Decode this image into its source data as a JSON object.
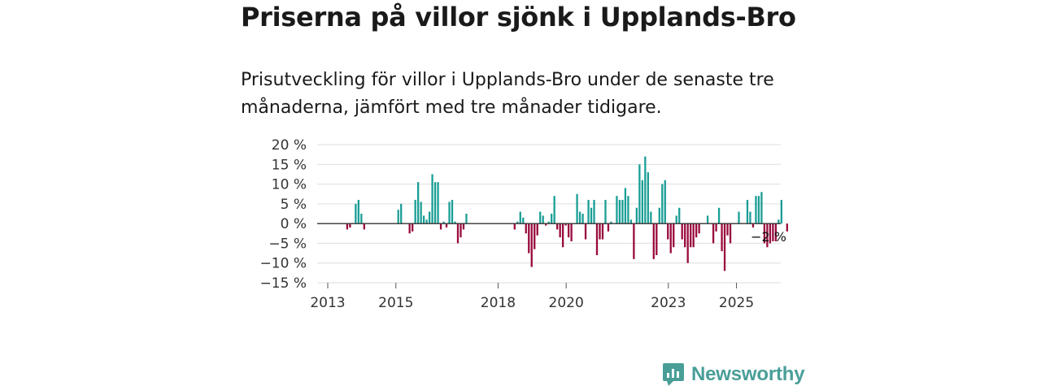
{
  "header": {
    "title": "Priserna på villor sjönk i Upplands-Bro",
    "subtitle": "Prisutveckling för villor i Upplands-Bro under de senaste tre månaderna, jämfört med tre månader tidigare."
  },
  "brand": {
    "name": "Newsworthy"
  },
  "colors": {
    "positive": "#1a9e96",
    "negative": "#990a3d",
    "grid": "#dddddd",
    "zero_line": "#333333"
  },
  "chart_data": {
    "type": "bar",
    "title": "Priserna på villor sjönk i Upplands-Bro",
    "ylabel": "",
    "xlabel": "",
    "ylim": [
      -15,
      20
    ],
    "y_ticks": [
      20,
      15,
      10,
      5,
      0,
      -5,
      -10,
      -15
    ],
    "y_tick_labels": [
      "20 %",
      "15 %",
      "10 %",
      "5 %",
      "0 %",
      "−5 %",
      "−10 %",
      "−15 %"
    ],
    "x_ticks": [
      {
        "label": "2013",
        "year": 2013
      },
      {
        "label": "2015",
        "year": 2015
      },
      {
        "label": "2018",
        "year": 2018
      },
      {
        "label": "2020",
        "year": 2020
      },
      {
        "label": "2023",
        "year": 2023
      },
      {
        "label": "2025",
        "year": 2025
      }
    ],
    "grid": true,
    "start": {
      "year": 2013,
      "month": 1
    },
    "unit": "%",
    "values": [
      null,
      null,
      null,
      null,
      null,
      null,
      -1.5,
      -1,
      0,
      5,
      6,
      2.5,
      -1.5,
      null,
      null,
      null,
      null,
      null,
      null,
      null,
      null,
      null,
      null,
      null,
      3.5,
      5,
      null,
      null,
      -2.5,
      -2,
      6,
      10.5,
      5.5,
      2,
      1,
      3,
      12.5,
      10.5,
      10.5,
      -1.5,
      0.5,
      -1,
      5.5,
      6,
      0.5,
      -5,
      -3.5,
      -1.5,
      2.5,
      null,
      null,
      null,
      null,
      null,
      null,
      null,
      null,
      null,
      null,
      null,
      null,
      null,
      null,
      null,
      null,
      -1.5,
      0.5,
      3,
      1.5,
      -2.5,
      -7.5,
      -11,
      -6.5,
      -3,
      3,
      2,
      -0.5,
      0.5,
      2.5,
      7,
      -1.5,
      -3.5,
      -6,
      -0.5,
      -3.5,
      -4.5,
      null,
      7.5,
      3,
      2.5,
      -4,
      6,
      4,
      6,
      -8,
      -4,
      -4,
      6,
      -2,
      0.5,
      null,
      7,
      6,
      6,
      9,
      7,
      1,
      -9,
      4,
      15,
      11,
      17,
      13,
      3,
      -9,
      -8,
      4,
      10,
      11,
      -4,
      -7.5,
      -6,
      2,
      4,
      -4,
      -6,
      -10,
      -6,
      -6,
      -3.5,
      -2.5,
      null,
      null,
      2,
      null,
      -5,
      -2,
      4,
      -7,
      -12,
      -3,
      -5,
      null,
      null,
      3,
      null,
      null,
      6,
      3,
      -1,
      7,
      7,
      8,
      -5,
      -6,
      -5,
      -4.5,
      -4.5,
      1,
      6,
      null,
      -2
    ],
    "annotations": [
      {
        "text": "−2 %",
        "year": 2025,
        "month": 12,
        "value": -2
      }
    ]
  }
}
